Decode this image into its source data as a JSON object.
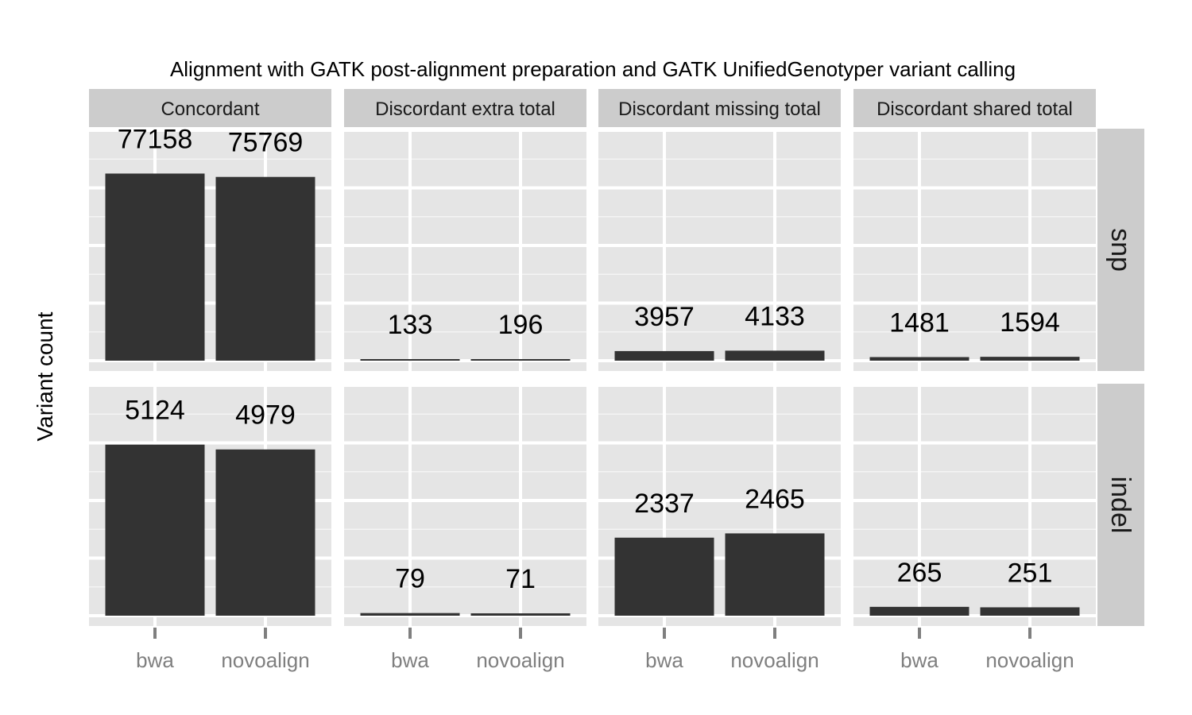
{
  "chart_data": {
    "type": "bar",
    "title": "Alignment with GATK post-alignment preparation and GATK UnifiedGenotyper variant calling",
    "xlabel": "",
    "ylabel": "Variant count",
    "categories": [
      "bwa",
      "novoalign"
    ],
    "facet_columns": [
      "Concordant",
      "Discordant extra total",
      "Discordant missing total",
      "Discordant shared total"
    ],
    "facet_rows": [
      {
        "name": "snp",
        "ylim": [
          0,
          95000
        ],
        "panels": [
          {
            "column": "Concordant",
            "values": [
              77158,
              75769
            ]
          },
          {
            "column": "Discordant extra total",
            "values": [
              133,
              196
            ]
          },
          {
            "column": "Discordant missing total",
            "values": [
              3957,
              4133
            ]
          },
          {
            "column": "Discordant shared total",
            "values": [
              1481,
              1594
            ]
          }
        ]
      },
      {
        "name": "indel",
        "ylim": [
          0,
          6900
        ],
        "panels": [
          {
            "column": "Concordant",
            "values": [
              5124,
              4979
            ]
          },
          {
            "column": "Discordant extra total",
            "values": [
              79,
              71
            ]
          },
          {
            "column": "Discordant missing total",
            "values": [
              2337,
              2465
            ]
          },
          {
            "column": "Discordant shared total",
            "values": [
              265,
              251
            ]
          }
        ]
      }
    ],
    "grid": true,
    "colors": {
      "bar": "#333333",
      "panel_background": "#e5e5e5",
      "grid": "#ffffff",
      "strip_background": "#cccccc",
      "tick_label": "#7f7f7f"
    }
  }
}
